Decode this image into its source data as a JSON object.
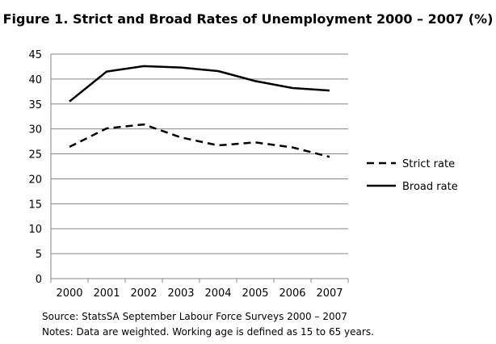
{
  "chart_data": {
    "type": "line",
    "title": "Figure 1. Strict and Broad Rates of Unemployment 2000 – 2007 (%)",
    "xlabel": "",
    "ylabel": "",
    "categories": [
      "2000",
      "2001",
      "2002",
      "2003",
      "2004",
      "2005",
      "2006",
      "2007"
    ],
    "ylim": [
      0,
      45
    ],
    "yticks": [
      0,
      5,
      10,
      15,
      20,
      25,
      30,
      35,
      40,
      45
    ],
    "grid": true,
    "legend_position": "right",
    "series": [
      {
        "name": "Strict rate",
        "style": "dashed",
        "color": "#000000",
        "values": [
          26.4,
          30.1,
          30.9,
          28.3,
          26.7,
          27.3,
          26.3,
          24.4
        ]
      },
      {
        "name": "Broad rate",
        "style": "solid",
        "color": "#000000",
        "values": [
          35.5,
          41.5,
          42.6,
          42.3,
          41.6,
          39.6,
          38.2,
          37.7
        ]
      }
    ]
  },
  "footer": {
    "source": "Source: StatsSA September Labour Force Surveys 2000 – 2007",
    "notes": "Notes: Data are weighted. Working age is defined as 15 to 65 years."
  }
}
